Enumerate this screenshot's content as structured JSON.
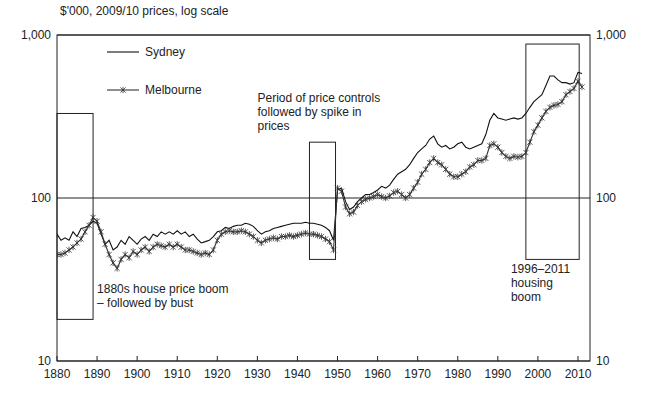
{
  "chart_data": {
    "type": "line",
    "y_label": "$'000, 2009/10 prices, log scale",
    "log": "y",
    "grid": true,
    "legend": "upper left",
    "xlim": [
      1880,
      2013
    ],
    "xticks": [
      1880,
      1890,
      1900,
      1910,
      1920,
      1930,
      1940,
      1950,
      1960,
      1970,
      1980,
      1990,
      2000,
      2010
    ],
    "ylim": [
      10,
      1000
    ],
    "yticks": [
      10,
      100,
      {
        "value": 1000,
        "label": "1,000"
      }
    ],
    "x": [
      1880,
      1881,
      1882,
      1883,
      1884,
      1885,
      1886,
      1887,
      1888,
      1889,
      1890,
      1891,
      1892,
      1893,
      1894,
      1895,
      1896,
      1897,
      1898,
      1899,
      1900,
      1901,
      1902,
      1903,
      1904,
      1905,
      1906,
      1907,
      1908,
      1909,
      1910,
      1911,
      1912,
      1913,
      1914,
      1915,
      1916,
      1917,
      1918,
      1919,
      1920,
      1921,
      1922,
      1923,
      1924,
      1925,
      1926,
      1927,
      1928,
      1929,
      1930,
      1931,
      1932,
      1933,
      1934,
      1935,
      1936,
      1937,
      1938,
      1939,
      1940,
      1941,
      1942,
      1943,
      1944,
      1945,
      1946,
      1947,
      1948,
      1949,
      1950,
      1951,
      1952,
      1953,
      1954,
      1955,
      1956,
      1957,
      1958,
      1959,
      1960,
      1961,
      1962,
      1963,
      1964,
      1965,
      1966,
      1967,
      1968,
      1969,
      1970,
      1971,
      1972,
      1973,
      1974,
      1975,
      1976,
      1977,
      1978,
      1979,
      1980,
      1981,
      1982,
      1983,
      1984,
      1985,
      1986,
      1987,
      1988,
      1989,
      1990,
      1991,
      1992,
      1993,
      1994,
      1995,
      1996,
      1997,
      1998,
      1999,
      2000,
      2001,
      2002,
      2003,
      2004,
      2005,
      2006,
      2007,
      2008,
      2009,
      2010,
      2011
    ],
    "series": [
      {
        "name": "Sydney",
        "color": "#111111",
        "line_style": "solid",
        "values": [
          60,
          55,
          57,
          55,
          62,
          58,
          65,
          66,
          68,
          72,
          70,
          60,
          52,
          55,
          48,
          50,
          55,
          52,
          58,
          55,
          52,
          56,
          58,
          55,
          60,
          58,
          62,
          60,
          62,
          60,
          63,
          60,
          62,
          58,
          60,
          56,
          53,
          54,
          55,
          58,
          62,
          63,
          66,
          65,
          67,
          68,
          68,
          70,
          69,
          67,
          63,
          60,
          62,
          63,
          65,
          66,
          67,
          68,
          69,
          70,
          70,
          70,
          71,
          70,
          70,
          69,
          68,
          66,
          63,
          55,
          112,
          115,
          95,
          85,
          88,
          95,
          100,
          105,
          105,
          108,
          112,
          118,
          115,
          120,
          130,
          140,
          145,
          150,
          160,
          175,
          190,
          200,
          210,
          230,
          240,
          215,
          205,
          210,
          200,
          205,
          215,
          220,
          205,
          200,
          205,
          210,
          215,
          245,
          300,
          330,
          310,
          305,
          300,
          305,
          310,
          305,
          310,
          330,
          360,
          390,
          410,
          430,
          490,
          560,
          560,
          530,
          510,
          510,
          500,
          510,
          590,
          580
        ]
      },
      {
        "name": "Melbourne",
        "color": "#333333",
        "line_style": "solid",
        "marker": "x",
        "values": [
          45,
          45,
          46,
          48,
          50,
          53,
          56,
          62,
          68,
          76,
          72,
          62,
          52,
          45,
          40,
          37,
          42,
          45,
          43,
          47,
          45,
          48,
          50,
          47,
          50,
          52,
          51,
          50,
          52,
          50,
          52,
          50,
          48,
          48,
          47,
          46,
          45,
          46,
          45,
          48,
          55,
          60,
          62,
          63,
          62,
          62,
          63,
          62,
          60,
          58,
          55,
          53,
          55,
          56,
          57,
          56,
          58,
          58,
          59,
          58,
          59,
          60,
          61,
          60,
          60,
          59,
          58,
          56,
          54,
          48,
          115,
          110,
          88,
          80,
          82,
          90,
          95,
          98,
          100,
          102,
          105,
          102,
          100,
          103,
          108,
          110,
          105,
          100,
          105,
          115,
          125,
          140,
          150,
          165,
          175,
          165,
          160,
          150,
          140,
          135,
          135,
          140,
          145,
          155,
          160,
          170,
          170,
          175,
          210,
          215,
          205,
          190,
          180,
          175,
          180,
          178,
          180,
          190,
          220,
          255,
          280,
          310,
          340,
          360,
          370,
          375,
          390,
          430,
          450,
          470,
          520,
          480
        ]
      }
    ],
    "annotations": [
      {
        "text": [
          "1880s house price boom",
          "– followed by bust"
        ],
        "x_range": [
          1880,
          1889
        ],
        "y_range": [
          18,
          330
        ]
      },
      {
        "text": [
          "Period of price controls",
          "followed by spike in",
          "prices"
        ],
        "x_range": [
          1943,
          1949.5
        ],
        "y_range": [
          42,
          220
        ]
      },
      {
        "text": [
          "1996–2011",
          "housing",
          "boom"
        ],
        "x_range": [
          1997,
          2010.3
        ],
        "y_range": [
          42,
          880
        ]
      }
    ]
  }
}
